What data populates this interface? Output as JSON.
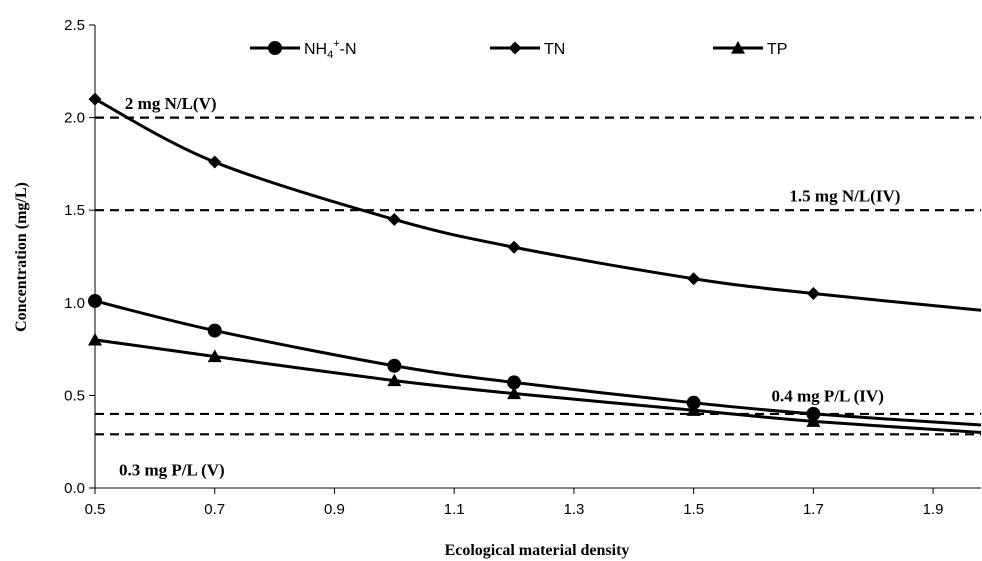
{
  "chart_data": {
    "type": "line",
    "title": "",
    "xlabel": "Ecological material density",
    "ylabel": "Concentration (mg/L)",
    "xlim": [
      0.5,
      1.98
    ],
    "ylim": [
      0,
      2.5
    ],
    "xticks": [
      "0.5",
      "0.7",
      "0.9",
      "1.1",
      "1.3",
      "1.5",
      "1.7",
      "1.9"
    ],
    "yticks": [
      "0.0",
      "0.5",
      "1.0",
      "1.5",
      "2.0",
      "2.5"
    ],
    "grid": false,
    "legend_position": "top",
    "series": [
      {
        "name": "NH4+-N",
        "marker": "circle",
        "x": [
          0.5,
          0.7,
          1.0,
          1.2,
          1.5,
          1.7
        ],
        "y": [
          1.01,
          0.85,
          0.66,
          0.57,
          0.46,
          0.4
        ],
        "line_x": [
          0.5,
          0.7,
          1.0,
          1.2,
          1.5,
          1.7,
          1.98
        ],
        "line_y": [
          1.01,
          0.85,
          0.66,
          0.57,
          0.46,
          0.4,
          0.34
        ]
      },
      {
        "name": "TN",
        "marker": "diamond",
        "x": [
          0.5,
          0.7,
          1.0,
          1.2,
          1.5,
          1.7
        ],
        "y": [
          2.1,
          1.76,
          1.45,
          1.3,
          1.13,
          1.05
        ],
        "line_x": [
          0.5,
          0.7,
          1.0,
          1.2,
          1.5,
          1.7,
          1.98
        ],
        "line_y": [
          2.1,
          1.76,
          1.45,
          1.3,
          1.13,
          1.05,
          0.96
        ]
      },
      {
        "name": "TP",
        "marker": "triangle",
        "x": [
          0.5,
          0.7,
          1.0,
          1.2,
          1.5,
          1.7
        ],
        "y": [
          0.8,
          0.71,
          0.58,
          0.51,
          0.42,
          0.36
        ],
        "line_x": [
          0.5,
          0.7,
          1.0,
          1.2,
          1.5,
          1.7,
          1.98
        ],
        "line_y": [
          0.8,
          0.71,
          0.58,
          0.51,
          0.42,
          0.36,
          0.3
        ]
      }
    ],
    "reference_lines": [
      {
        "y": 2.0,
        "label": "2 mg N/L(V)",
        "label_x": 0.55,
        "label_y": 2.08
      },
      {
        "y": 1.5,
        "label": "1.5 mg N/L(IV)",
        "label_x": 1.66,
        "label_y": 1.58
      },
      {
        "y": 0.4,
        "label": "0.4 mg P/L (IV)",
        "label_x": 1.63,
        "label_y": 0.5
      },
      {
        "y": 0.29,
        "label": "0.3 mg P/L (V)",
        "label_x": 0.54,
        "label_y": 0.1
      }
    ]
  }
}
